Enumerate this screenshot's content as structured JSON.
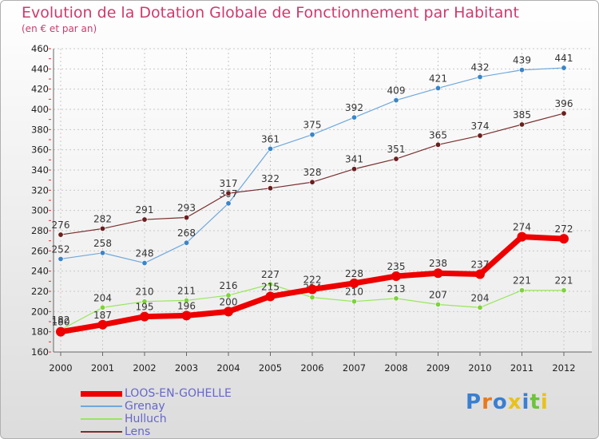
{
  "chart_data": {
    "type": "line",
    "title": "Evolution de la Dotation Globale de Fonctionnement par Habitant",
    "subtitle": "(en € et par an)",
    "categories": [
      "2000",
      "2001",
      "2002",
      "2003",
      "2004",
      "2005",
      "2006",
      "2007",
      "2008",
      "2009",
      "2010",
      "2011",
      "2012"
    ],
    "ylim": [
      160,
      460
    ],
    "yticks": [
      160,
      180,
      200,
      220,
      240,
      260,
      280,
      300,
      320,
      340,
      360,
      380,
      400,
      420,
      440,
      460
    ],
    "series": [
      {
        "name": "LOOS-EN-GOHELLE",
        "color": "#ee0000",
        "values": [
          180,
          187,
          195,
          196,
          200,
          215,
          222,
          228,
          235,
          238,
          237,
          274,
          272
        ]
      },
      {
        "name": "Grenay",
        "color": "#6fa8dc",
        "values": [
          252,
          258,
          248,
          268,
          307,
          361,
          375,
          392,
          409,
          421,
          432,
          439,
          441
        ]
      },
      {
        "name": "Hulluch",
        "color": "#99e65c",
        "values": [
          182,
          204,
          210,
          211,
          216,
          227,
          214,
          210,
          213,
          207,
          204,
          221,
          221
        ]
      },
      {
        "name": "Lens",
        "color": "#7a2e2e",
        "values": [
          276,
          282,
          291,
          293,
          317,
          322,
          328,
          341,
          351,
          365,
          374,
          385,
          396
        ]
      }
    ]
  },
  "logo": {
    "text": "Proxiti"
  }
}
